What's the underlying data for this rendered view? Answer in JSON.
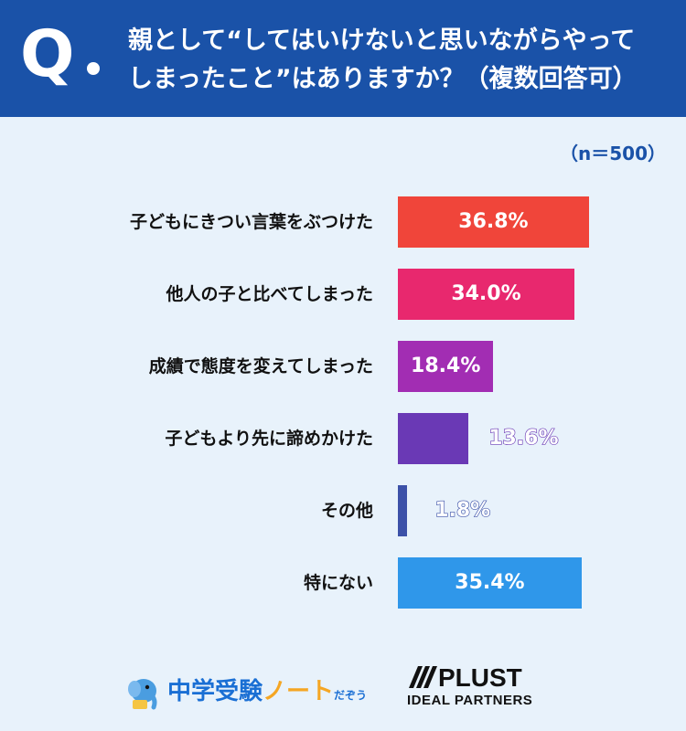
{
  "question": {
    "mark": "Q",
    "line1": "親として“してはいけないと思いながらやって",
    "line2": "しまったこと”はありますか？（複数回答可）"
  },
  "sample_size": "（n＝500）",
  "chart_data": {
    "type": "bar",
    "orientation": "horizontal",
    "categories": [
      "子どもにきつい言葉をぶつけた",
      "他人の子と比べてしまった",
      "成績で態度を変えてしまった",
      "子どもより先に諦めかけた",
      "その他",
      "特にない"
    ],
    "values": [
      36.8,
      34.0,
      18.4,
      13.6,
      1.8,
      35.4
    ],
    "value_labels": [
      "36.8%",
      "34.0%",
      "18.4%",
      "13.6%",
      "1.8%",
      "35.4%"
    ],
    "colors": [
      "#f0453a",
      "#e8286e",
      "#a22db3",
      "#6a39b5",
      "#3c51a8",
      "#2f97ea"
    ],
    "xlim": [
      0,
      37
    ],
    "unit": "%"
  },
  "footer": {
    "logo1": {
      "main": "中学受験",
      "note": "ノート",
      "small": "だぞう"
    },
    "logo2": {
      "top": "PLUST",
      "bottom": "IDEAL PARTNERS"
    }
  }
}
